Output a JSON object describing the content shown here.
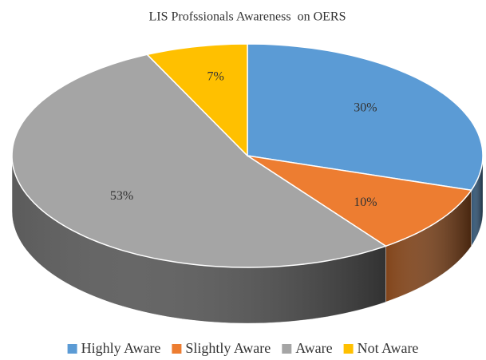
{
  "chart_data": {
    "type": "pie",
    "title": "LIS Profssionals Awareness  on OERS",
    "categories": [
      "Highly Aware",
      "Slightly Aware",
      "Aware",
      "Not Aware"
    ],
    "values": [
      30,
      10,
      53,
      7
    ],
    "value_labels": [
      "30%",
      "10%",
      "53%",
      "7%"
    ],
    "colors": [
      "#5b9bd5",
      "#ed7d31",
      "#a5a5a5",
      "#ffc000"
    ],
    "legend": "bottom"
  }
}
